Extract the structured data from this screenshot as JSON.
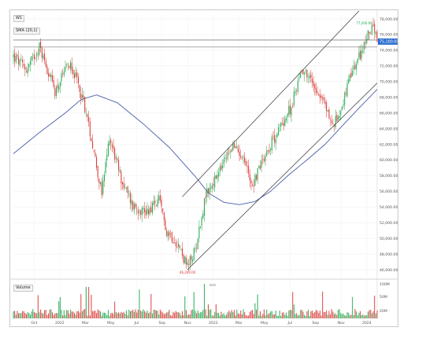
{
  "toolbar": {
    "symbol_label": "W1",
    "ma_label": "SMA (20,1)",
    "volume_label": "Volume"
  },
  "price_tags": {
    "last": "75,100.00",
    "high": "77,200.00",
    "low": "46,200.00"
  },
  "colors": {
    "up": "#1aa64a",
    "down": "#d8322f",
    "ma": "#4a5fa8",
    "channel": "#333333",
    "horizontal": "#555555"
  },
  "chart_data": {
    "type": "candlestick",
    "panes": [
      "price",
      "volume"
    ],
    "price_axis": {
      "ticks": [
        "78,000.00",
        "76,000.00",
        "74,000.00",
        "72,000.00",
        "70,000.00",
        "68,000.00",
        "66,000.00",
        "64,000.00",
        "62,000.00",
        "60,000.00",
        "58,000.00",
        "56,000.00",
        "54,000.00",
        "52,000.00",
        "50,000.00",
        "48,000.00",
        "46,000.00"
      ],
      "ylim": [
        45000,
        78500
      ]
    },
    "volume_axis": {
      "ticks": [
        "100M",
        "50M",
        "20M"
      ]
    },
    "time_axis": {
      "ticks": [
        "Oct",
        "2022",
        "Mar",
        "May",
        "Jul",
        "Sep",
        "Nov",
        "2023",
        "Mar",
        "May",
        "Jul",
        "Sep",
        "Nov",
        "2024"
      ]
    },
    "anchors": [
      {
        "t": 0,
        "p": 73200
      },
      {
        "t": 10,
        "p": 71500
      },
      {
        "t": 20,
        "p": 74500
      },
      {
        "t": 32,
        "p": 68800
      },
      {
        "t": 44,
        "p": 72500
      },
      {
        "t": 54,
        "p": 67500
      },
      {
        "t": 62,
        "p": 61200
      },
      {
        "t": 68,
        "p": 55600
      },
      {
        "t": 74,
        "p": 63000
      },
      {
        "t": 84,
        "p": 57000
      },
      {
        "t": 92,
        "p": 54200
      },
      {
        "t": 102,
        "p": 53400
      },
      {
        "t": 112,
        "p": 54800
      },
      {
        "t": 118,
        "p": 51000
      },
      {
        "t": 126,
        "p": 49500
      },
      {
        "t": 134,
        "p": 46300
      },
      {
        "t": 140,
        "p": 48500
      },
      {
        "t": 148,
        "p": 55500
      },
      {
        "t": 158,
        "p": 58200
      },
      {
        "t": 168,
        "p": 61700
      },
      {
        "t": 176,
        "p": 60800
      },
      {
        "t": 184,
        "p": 56800
      },
      {
        "t": 192,
        "p": 60200
      },
      {
        "t": 204,
        "p": 63800
      },
      {
        "t": 214,
        "p": 66800
      },
      {
        "t": 222,
        "p": 71800
      },
      {
        "t": 232,
        "p": 69500
      },
      {
        "t": 240,
        "p": 67000
      },
      {
        "t": 246,
        "p": 64200
      },
      {
        "t": 252,
        "p": 66500
      },
      {
        "t": 260,
        "p": 70800
      },
      {
        "t": 268,
        "p": 73800
      },
      {
        "t": 276,
        "p": 77200
      },
      {
        "t": 280,
        "p": 75100
      }
    ],
    "sma": [
      {
        "t": 0,
        "p": 60800
      },
      {
        "t": 20,
        "p": 63500
      },
      {
        "t": 40,
        "p": 66000
      },
      {
        "t": 52,
        "p": 67700
      },
      {
        "t": 64,
        "p": 68300
      },
      {
        "t": 80,
        "p": 67300
      },
      {
        "t": 100,
        "p": 64600
      },
      {
        "t": 120,
        "p": 61600
      },
      {
        "t": 140,
        "p": 57900
      },
      {
        "t": 150,
        "p": 55800
      },
      {
        "t": 162,
        "p": 54600
      },
      {
        "t": 174,
        "p": 54300
      },
      {
        "t": 186,
        "p": 54700
      },
      {
        "t": 198,
        "p": 56000
      },
      {
        "t": 212,
        "p": 58100
      },
      {
        "t": 226,
        "p": 60000
      },
      {
        "t": 240,
        "p": 62000
      },
      {
        "t": 254,
        "p": 64500
      },
      {
        "t": 266,
        "p": 66600
      },
      {
        "t": 280,
        "p": 69000
      }
    ],
    "trendlines": [
      {
        "name": "upper-channel",
        "from": {
          "t": 130,
          "p": 55300
        },
        "to": {
          "t": 266,
          "p": 79000
        }
      },
      {
        "name": "lower-channel",
        "from": {
          "t": 134,
          "p": 46000
        },
        "to": {
          "t": 280,
          "p": 69800
        }
      },
      {
        "name": "resistance",
        "from": {
          "t": 0,
          "p": 75300
        },
        "to": {
          "t": 280,
          "p": 75300
        }
      },
      {
        "name": "support",
        "from": {
          "t": 0,
          "p": 74400
        },
        "to": {
          "t": 280,
          "p": 74400
        }
      }
    ],
    "grid": true,
    "legend": "none"
  }
}
